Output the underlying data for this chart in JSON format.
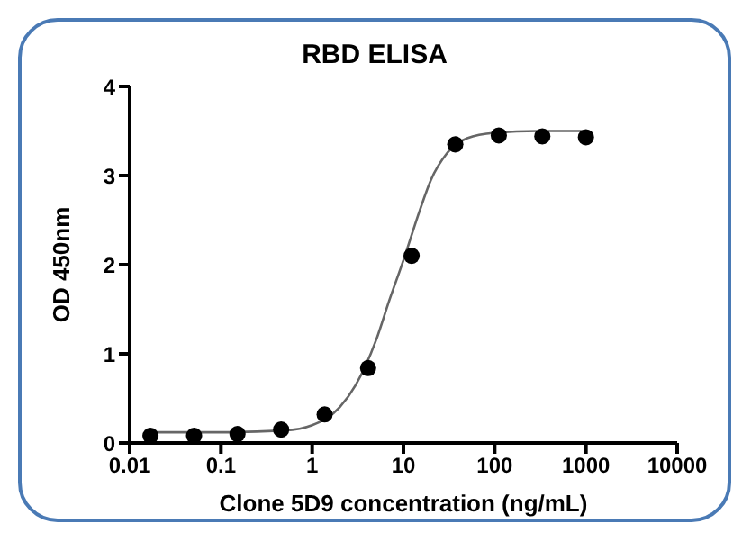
{
  "chart_data": {
    "type": "scatter",
    "title": "RBD ELISA",
    "xlabel": "Clone 5D9 concentration (ng/mL)",
    "ylabel": "OD 450nm",
    "log": "x",
    "xlim": [
      0.01,
      10000
    ],
    "xticks": [
      0.01,
      0.1,
      1,
      10,
      100,
      1000,
      10000
    ],
    "ylim": [
      0,
      4
    ],
    "yticks": [
      0,
      1,
      2,
      3,
      4
    ],
    "grid": false,
    "marker": "circle",
    "series": [
      {
        "type": "scatter",
        "color": "#000000",
        "x": [
          0.0169,
          0.0508,
          0.152,
          0.457,
          1.37,
          4.1,
          12.3,
          37,
          111,
          333,
          1000
        ],
        "values": [
          0.08,
          0.08,
          0.1,
          0.15,
          0.32,
          0.84,
          2.1,
          3.35,
          3.45,
          3.44,
          3.43
        ]
      },
      {
        "type": "line",
        "color": "#666666",
        "marker": "none",
        "x": [
          0.0169,
          0.1,
          0.5,
          1,
          2,
          3,
          5,
          7,
          10,
          15,
          20,
          30,
          50,
          100,
          300,
          1000
        ],
        "values": [
          0.12,
          0.12,
          0.14,
          0.2,
          0.4,
          0.65,
          1.15,
          1.6,
          2.05,
          2.6,
          2.95,
          3.25,
          3.42,
          3.48,
          3.5,
          3.5
        ]
      }
    ]
  }
}
